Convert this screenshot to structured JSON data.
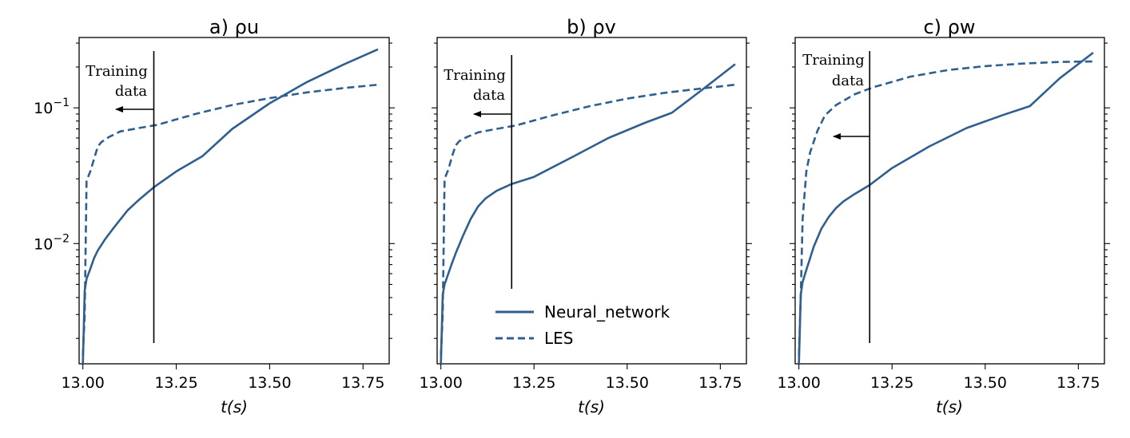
{
  "chart_data": [
    {
      "type": "line",
      "title": "a) ρu",
      "xlabel": "t(s)",
      "ylabel": "",
      "xlim": [
        12.99,
        13.82
      ],
      "ylim": [
        0.0013,
        0.33
      ],
      "yscale": "log",
      "xticks": [
        "13.00",
        "13.25",
        "13.50",
        "13.75"
      ],
      "yticks": [
        {
          "base": "10",
          "exp": "−1",
          "value": 0.1
        },
        {
          "base": "10",
          "exp": "−2",
          "value": 0.01
        }
      ],
      "annotation": {
        "lines": [
          "Training",
          "data"
        ],
        "marker_x": 13.19,
        "arrow": "left"
      },
      "series": [
        {
          "name": "Neural_network",
          "style": "solid",
          "color": "#2f5f8f",
          "x": [
            13.0,
            13.005,
            13.01,
            13.02,
            13.03,
            13.04,
            13.06,
            13.08,
            13.1,
            13.12,
            13.15,
            13.19,
            13.25,
            13.32,
            13.4,
            13.5,
            13.6,
            13.7,
            13.79
          ],
          "y": [
            0.0013,
            0.0045,
            0.0055,
            0.0065,
            0.0078,
            0.0089,
            0.0108,
            0.0128,
            0.015,
            0.0176,
            0.021,
            0.026,
            0.034,
            0.044,
            0.07,
            0.108,
            0.155,
            0.21,
            0.27
          ]
        },
        {
          "name": "LES",
          "style": "dashed",
          "color": "#2f5f8f",
          "x": [
            13.0,
            13.005,
            13.01,
            13.02,
            13.03,
            13.04,
            13.05,
            13.07,
            13.1,
            13.15,
            13.2,
            13.3,
            13.4,
            13.5,
            13.6,
            13.7,
            13.79
          ],
          "y": [
            0.0015,
            0.003,
            0.029,
            0.034,
            0.042,
            0.052,
            0.056,
            0.061,
            0.067,
            0.071,
            0.075,
            0.09,
            0.105,
            0.118,
            0.13,
            0.14,
            0.148
          ]
        }
      ]
    },
    {
      "type": "line",
      "title": "b) ρv",
      "xlabel": "t(s)",
      "ylabel": "",
      "xlim": [
        12.99,
        13.82
      ],
      "ylim": [
        0.0013,
        0.33
      ],
      "yscale": "log",
      "xticks": [
        "13.00",
        "13.25",
        "13.50",
        "13.75"
      ],
      "yticks": [],
      "annotation": {
        "lines": [
          "Training",
          "data"
        ],
        "marker_x": 13.19,
        "arrow": "left"
      },
      "legend": {
        "placement": "lower-center",
        "entries": [
          {
            "label": "Neural_network",
            "style": "solid"
          },
          {
            "label": "LES",
            "style": "dashed"
          }
        ]
      },
      "series": [
        {
          "name": "Neural_network",
          "style": "solid",
          "color": "#2f5f8f",
          "x": [
            13.0,
            13.005,
            13.01,
            13.02,
            13.03,
            13.04,
            13.06,
            13.08,
            13.1,
            13.12,
            13.15,
            13.19,
            13.25,
            13.35,
            13.45,
            13.55,
            13.62,
            13.7,
            13.79
          ],
          "y": [
            0.0013,
            0.0042,
            0.005,
            0.006,
            0.0072,
            0.0085,
            0.0115,
            0.0152,
            0.0188,
            0.0215,
            0.0245,
            0.0275,
            0.031,
            0.043,
            0.06,
            0.078,
            0.092,
            0.135,
            0.21
          ]
        },
        {
          "name": "LES",
          "style": "dashed",
          "color": "#2f5f8f",
          "x": [
            13.0,
            13.005,
            13.01,
            13.02,
            13.03,
            13.04,
            13.05,
            13.07,
            13.1,
            13.15,
            13.2,
            13.3,
            13.4,
            13.5,
            13.6,
            13.7,
            13.79
          ],
          "y": [
            0.0015,
            0.003,
            0.03,
            0.035,
            0.044,
            0.053,
            0.057,
            0.061,
            0.066,
            0.07,
            0.074,
            0.088,
            0.103,
            0.117,
            0.129,
            0.139,
            0.148
          ]
        }
      ]
    },
    {
      "type": "line",
      "title": "c) ρw",
      "xlabel": "t(s)",
      "ylabel": "",
      "xlim": [
        12.99,
        13.82
      ],
      "ylim": [
        0.0013,
        0.33
      ],
      "yscale": "log",
      "xticks": [
        "13.00",
        "13.25",
        "13.50",
        "13.75"
      ],
      "yticks": [],
      "annotation": {
        "lines": [
          "Training",
          "data"
        ],
        "marker_x": 13.19,
        "arrow": "left"
      },
      "series": [
        {
          "name": "Neural_network",
          "style": "solid",
          "color": "#2f5f8f",
          "x": [
            13.0,
            13.005,
            13.01,
            13.02,
            13.03,
            13.04,
            13.06,
            13.08,
            13.1,
            13.12,
            13.15,
            13.19,
            13.25,
            13.35,
            13.45,
            13.55,
            13.62,
            13.7,
            13.79
          ],
          "y": [
            0.0013,
            0.0042,
            0.0052,
            0.0064,
            0.0078,
            0.0095,
            0.0128,
            0.0157,
            0.0183,
            0.0205,
            0.0232,
            0.027,
            0.036,
            0.052,
            0.071,
            0.089,
            0.103,
            0.165,
            0.255
          ]
        },
        {
          "name": "LES",
          "style": "dashed",
          "color": "#2f5f8f",
          "x": [
            13.0,
            13.005,
            13.01,
            13.02,
            13.03,
            13.05,
            13.07,
            13.1,
            13.15,
            13.2,
            13.3,
            13.4,
            13.5,
            13.6,
            13.7,
            13.79
          ],
          "y": [
            0.0015,
            0.004,
            0.015,
            0.034,
            0.047,
            0.068,
            0.088,
            0.105,
            0.126,
            0.142,
            0.17,
            0.19,
            0.203,
            0.212,
            0.218,
            0.22
          ]
        }
      ]
    }
  ]
}
